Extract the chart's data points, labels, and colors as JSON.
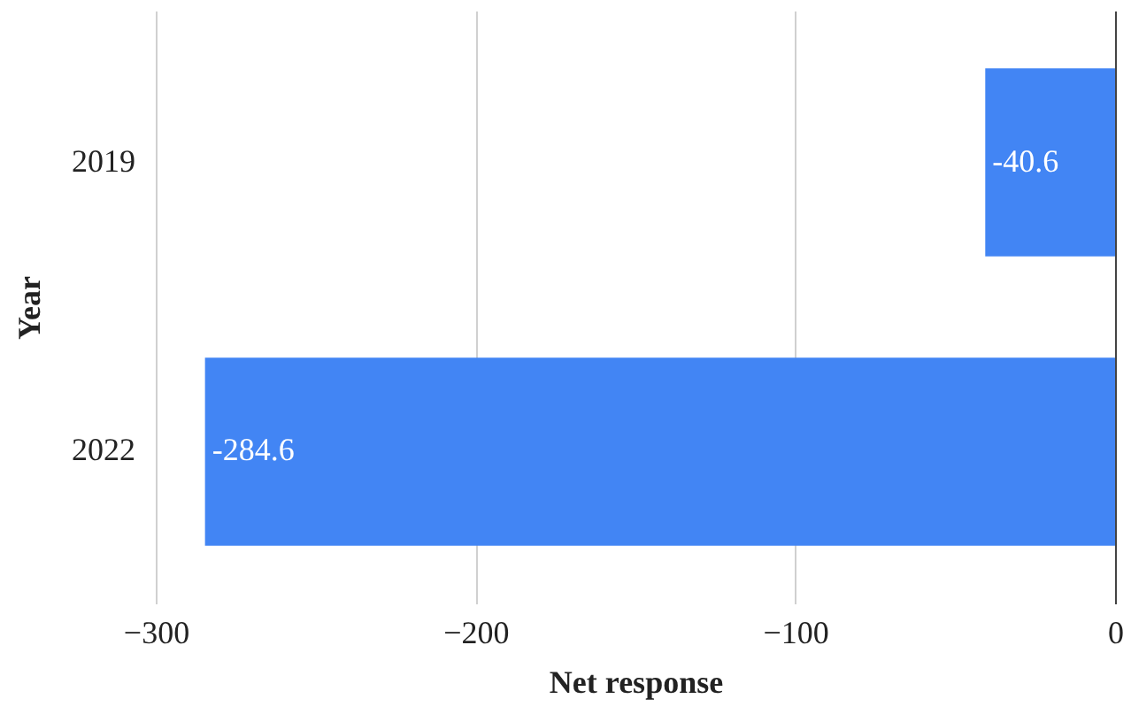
{
  "chart_data": {
    "type": "bar",
    "orientation": "horizontal",
    "xlabel": "Net response",
    "ylabel": "Year",
    "categories": [
      "2019",
      "2022"
    ],
    "values": [
      -40.6,
      -284.6
    ],
    "color": "#4285f4",
    "xlim": [
      -300,
      0
    ],
    "xticks": [
      -300,
      -200,
      -100,
      0
    ],
    "grid": "x",
    "data_labels": true
  }
}
